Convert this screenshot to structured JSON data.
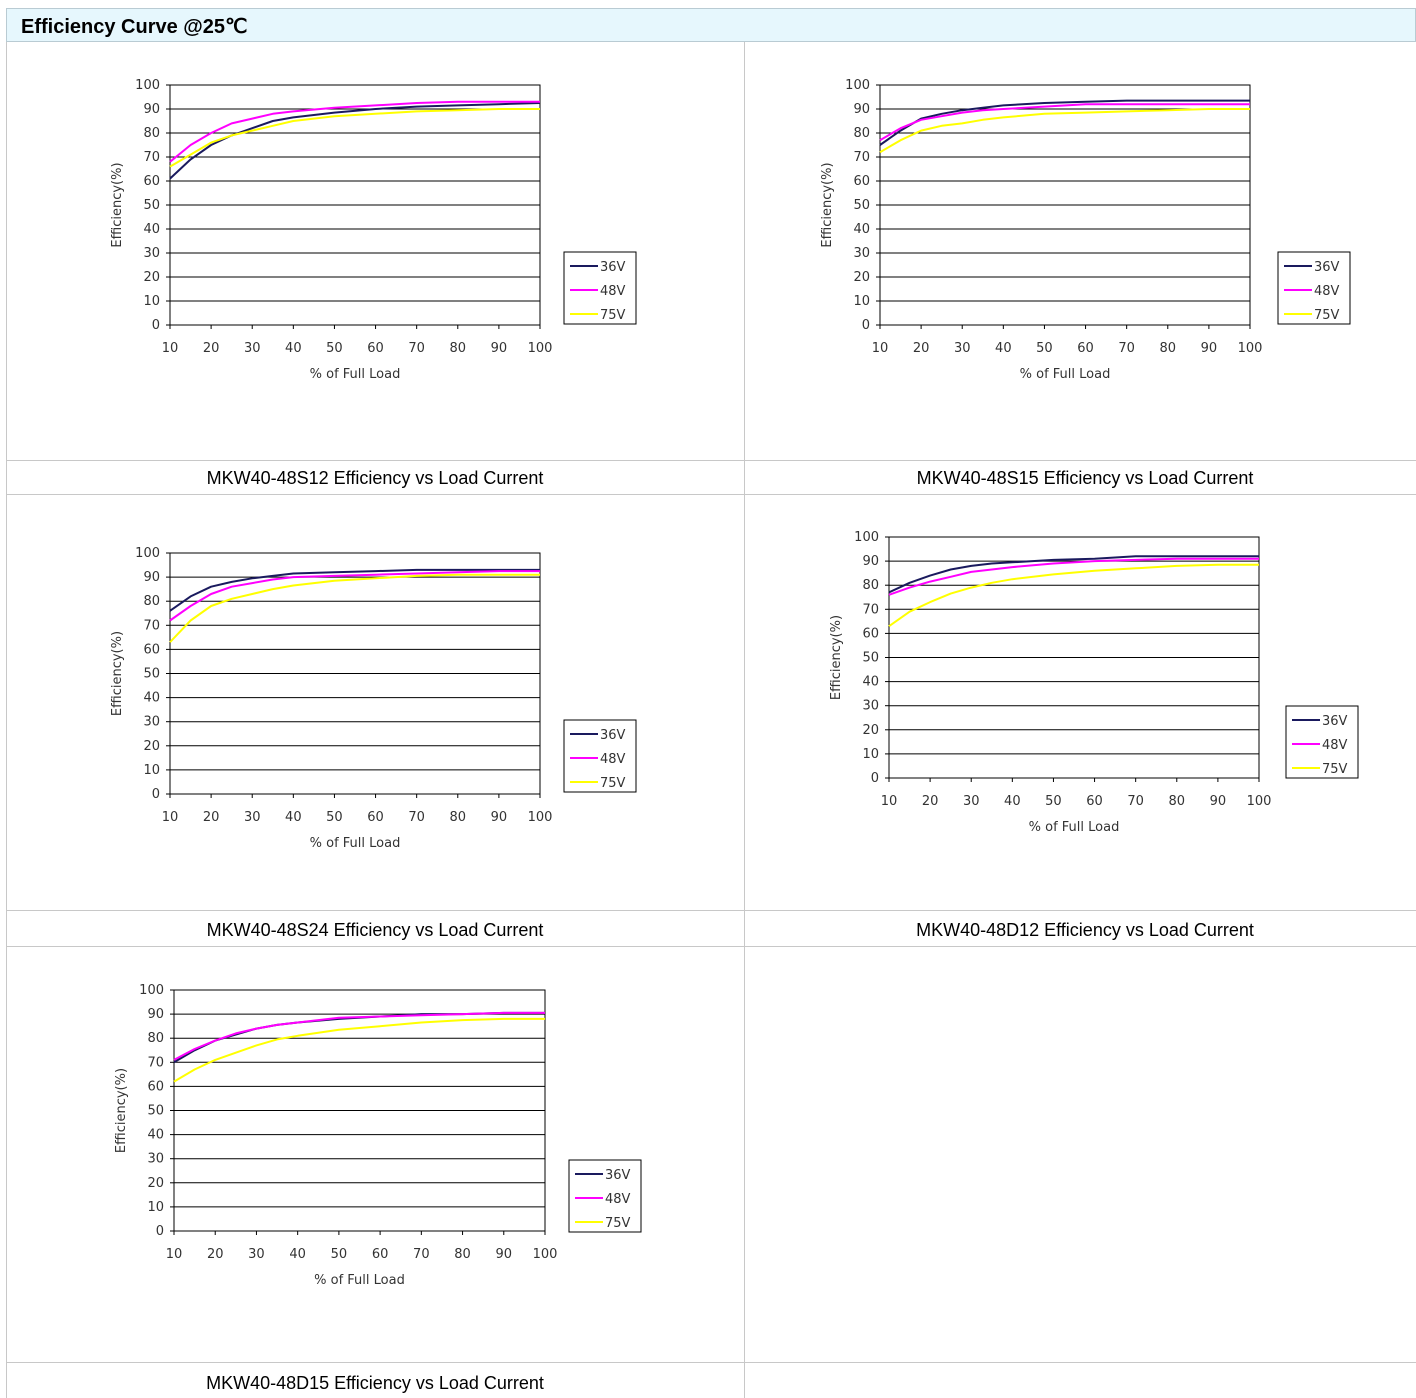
{
  "header": {
    "title": "Efficiency Curve @25℃"
  },
  "colors": {
    "36V": "#1a1a5e",
    "48V": "#ff00ff",
    "75V": "#ffff00",
    "header_bg": "#e6f7fd"
  },
  "chart_data": [
    {
      "type": "line",
      "caption": "MKW40-48S12 Efficiency vs Load Current",
      "xlabel": "% of Full Load",
      "ylabel": "Efficiency(%)",
      "xlim": [
        10,
        100
      ],
      "ylim": [
        0,
        100
      ],
      "xticks": [
        10,
        20,
        30,
        40,
        50,
        60,
        70,
        80,
        90,
        100
      ],
      "yticks": [
        0,
        10,
        20,
        30,
        40,
        50,
        60,
        70,
        80,
        90,
        100
      ],
      "legend": "right",
      "grid": "horizontal",
      "x": [
        10,
        15,
        20,
        25,
        30,
        35,
        40,
        50,
        60,
        70,
        80,
        90,
        100
      ],
      "series": [
        {
          "name": "36V",
          "values": [
            61,
            69,
            75,
            79,
            82,
            85,
            86.5,
            88.5,
            90,
            91,
            91.5,
            92,
            92.5
          ]
        },
        {
          "name": "48V",
          "values": [
            68,
            75,
            80,
            84,
            86,
            88,
            89,
            90.5,
            91.5,
            92.5,
            93,
            93,
            93
          ]
        },
        {
          "name": "75V",
          "values": [
            66,
            71,
            76,
            79,
            81,
            83,
            85,
            87,
            88,
            89,
            89.5,
            90,
            90
          ]
        }
      ]
    },
    {
      "type": "line",
      "caption": "MKW40-48S15 Efficiency vs Load Current",
      "xlabel": "% of Full Load",
      "ylabel": "Efficiency(%)",
      "xlim": [
        10,
        100
      ],
      "ylim": [
        0,
        100
      ],
      "xticks": [
        10,
        20,
        30,
        40,
        50,
        60,
        70,
        80,
        90,
        100
      ],
      "yticks": [
        0,
        10,
        20,
        30,
        40,
        50,
        60,
        70,
        80,
        90,
        100
      ],
      "legend": "right",
      "grid": "horizontal",
      "x": [
        10,
        15,
        20,
        25,
        30,
        35,
        40,
        50,
        60,
        70,
        80,
        90,
        100
      ],
      "series": [
        {
          "name": "36V",
          "values": [
            75,
            81,
            86,
            88,
            89.5,
            90.5,
            91.5,
            92.5,
            93,
            93.5,
            93.5,
            93.5,
            93.5
          ]
        },
        {
          "name": "48V",
          "values": [
            77,
            82,
            85.5,
            87,
            88.5,
            89.5,
            90,
            91,
            92,
            92,
            92,
            92,
            92
          ]
        },
        {
          "name": "75V",
          "values": [
            72,
            77,
            81,
            83,
            84,
            85.5,
            86.5,
            88,
            88.5,
            89,
            89.5,
            90,
            90
          ]
        }
      ]
    },
    {
      "type": "line",
      "caption": "MKW40-48S24 Efficiency vs Load Current",
      "xlabel": "% of Full Load",
      "ylabel": "Efficiency(%)",
      "xlim": [
        10,
        100
      ],
      "ylim": [
        0,
        100
      ],
      "xticks": [
        10,
        20,
        30,
        40,
        50,
        60,
        70,
        80,
        90,
        100
      ],
      "yticks": [
        0,
        10,
        20,
        30,
        40,
        50,
        60,
        70,
        80,
        90,
        100
      ],
      "legend": "right",
      "grid": "horizontal",
      "x": [
        10,
        15,
        20,
        25,
        30,
        35,
        40,
        50,
        60,
        70,
        80,
        90,
        100
      ],
      "series": [
        {
          "name": "36V",
          "values": [
            76,
            82,
            86,
            88,
            89.5,
            90.5,
            91.5,
            92,
            92.5,
            93,
            93,
            93,
            93
          ]
        },
        {
          "name": "48V",
          "values": [
            72,
            78,
            83,
            86,
            87.5,
            89,
            90,
            90.5,
            91,
            91.5,
            92,
            92.5,
            92.5
          ]
        },
        {
          "name": "75V",
          "values": [
            63,
            72,
            78,
            81,
            83,
            85,
            86.5,
            88.5,
            89.5,
            90.5,
            91,
            91,
            91
          ]
        }
      ]
    },
    {
      "type": "line",
      "caption": "MKW40-48D12 Efficiency vs Load Current",
      "xlabel": "% of Full Load",
      "ylabel": "Efficiency(%)",
      "xlim": [
        10,
        100
      ],
      "ylim": [
        0,
        100
      ],
      "xticks": [
        10,
        20,
        30,
        40,
        50,
        60,
        70,
        80,
        90,
        100
      ],
      "yticks": [
        0,
        10,
        20,
        30,
        40,
        50,
        60,
        70,
        80,
        90,
        100
      ],
      "legend": "right",
      "grid": "horizontal",
      "x": [
        10,
        15,
        20,
        25,
        30,
        35,
        40,
        50,
        60,
        70,
        80,
        90,
        100
      ],
      "series": [
        {
          "name": "36V",
          "values": [
            77,
            81,
            84,
            86.5,
            88,
            89,
            89.5,
            90.5,
            91,
            92,
            92,
            92,
            92
          ]
        },
        {
          "name": "48V",
          "values": [
            76,
            79,
            81.5,
            83.5,
            85.5,
            86.5,
            87.5,
            89,
            90,
            90.5,
            91,
            91,
            91
          ]
        },
        {
          "name": "75V",
          "values": [
            63,
            69,
            73,
            76.5,
            79,
            81,
            82.5,
            84.5,
            86,
            87,
            88,
            88.5,
            88.5
          ]
        }
      ]
    },
    {
      "type": "line",
      "caption": "MKW40-48D15 Efficiency vs Load Current",
      "xlabel": "% of Full Load",
      "ylabel": "Efficiency(%)",
      "xlim": [
        10,
        100
      ],
      "ylim": [
        0,
        100
      ],
      "xticks": [
        10,
        20,
        30,
        40,
        50,
        60,
        70,
        80,
        90,
        100
      ],
      "yticks": [
        0,
        10,
        20,
        30,
        40,
        50,
        60,
        70,
        80,
        90,
        100
      ],
      "legend": "right",
      "grid": "horizontal",
      "x": [
        10,
        15,
        20,
        25,
        30,
        35,
        40,
        50,
        60,
        70,
        80,
        90,
        100
      ],
      "series": [
        {
          "name": "36V",
          "values": [
            70,
            75,
            79,
            81.5,
            84,
            85.5,
            86.5,
            88,
            89,
            90,
            90,
            90.5,
            90.5
          ]
        },
        {
          "name": "48V",
          "values": [
            71,
            75.5,
            79,
            82,
            84,
            85.5,
            86.5,
            88.5,
            89,
            89.5,
            90,
            90.5,
            90.5
          ]
        },
        {
          "name": "75V",
          "values": [
            62,
            67,
            71,
            74,
            77,
            79.5,
            81,
            83.5,
            85,
            86.5,
            87.5,
            88,
            88
          ]
        }
      ]
    }
  ]
}
